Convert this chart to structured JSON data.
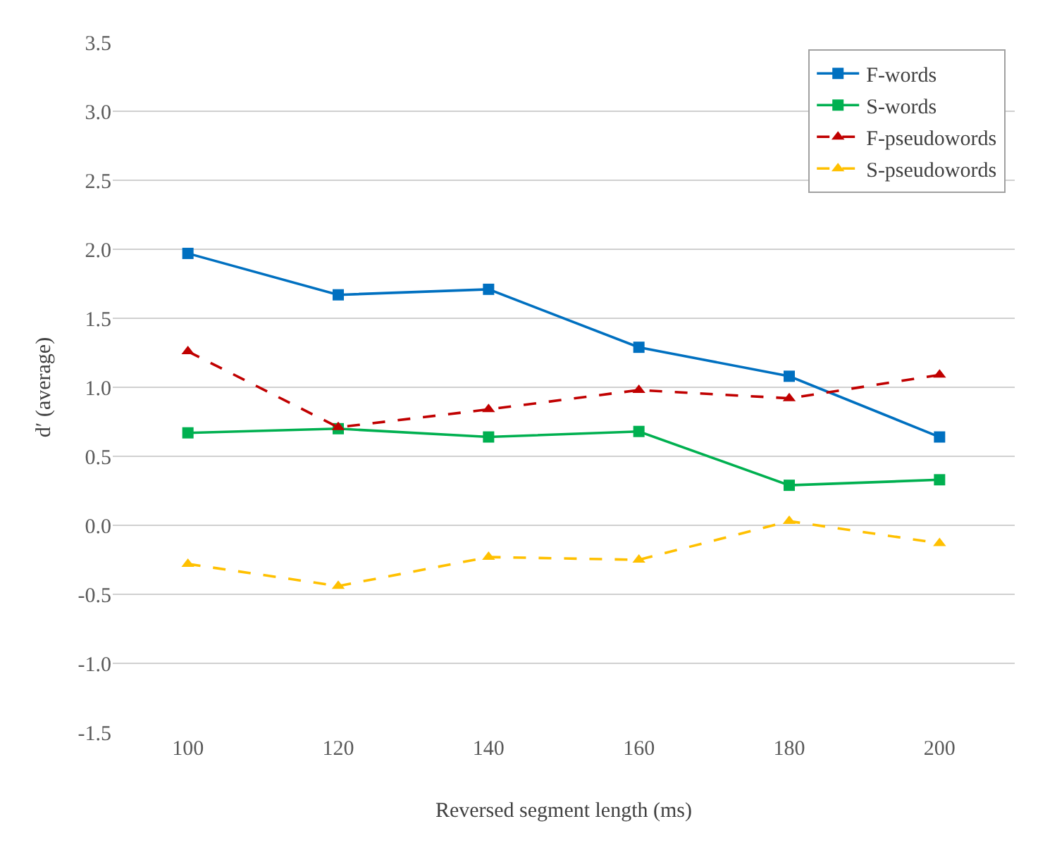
{
  "chart_data": {
    "type": "line",
    "xlabel": "Reversed segment length (ms)",
    "ylabel": "d′ (average)",
    "categories": [
      "100",
      "120",
      "140",
      "160",
      "180",
      "200"
    ],
    "series": [
      {
        "name": "F-words",
        "color": "#0070c0",
        "marker": "square",
        "line_style": "solid",
        "values": [
          1.97,
          1.67,
          1.71,
          1.29,
          1.08,
          0.64
        ]
      },
      {
        "name": "S-words",
        "color": "#00b050",
        "marker": "square",
        "line_style": "solid",
        "values": [
          0.67,
          0.7,
          0.64,
          0.68,
          0.29,
          0.33
        ]
      },
      {
        "name": "F-pseudowords",
        "color": "#c00000",
        "marker": "triangle",
        "line_style": "dashed",
        "values": [
          1.26,
          0.71,
          0.84,
          0.98,
          0.92,
          1.09
        ]
      },
      {
        "name": "S-pseudowords",
        "color": "#ffc000",
        "marker": "triangle",
        "line_style": "dashed",
        "values": [
          -0.28,
          -0.44,
          -0.23,
          -0.25,
          0.03,
          -0.13
        ]
      }
    ],
    "ylim": [
      -1.5,
      3.5
    ],
    "yticks": [
      {
        "value": -1.5,
        "label": "-1.5"
      },
      {
        "value": -1.0,
        "label": "-1.0"
      },
      {
        "value": -0.5,
        "label": "-0.5"
      },
      {
        "value": 0,
        "label": "0.0"
      },
      {
        "value": 0.5,
        "label": "0.5"
      },
      {
        "value": 1.0,
        "label": "1.0"
      },
      {
        "value": 1.5,
        "label": "1.5"
      },
      {
        "value": 2.0,
        "label": "2.0"
      },
      {
        "value": 2.5,
        "label": "2.5"
      },
      {
        "value": 3.0,
        "label": "3.0"
      },
      {
        "value": 3.5,
        "label": "3.5"
      }
    ],
    "grid": "y",
    "legend": "top right"
  }
}
